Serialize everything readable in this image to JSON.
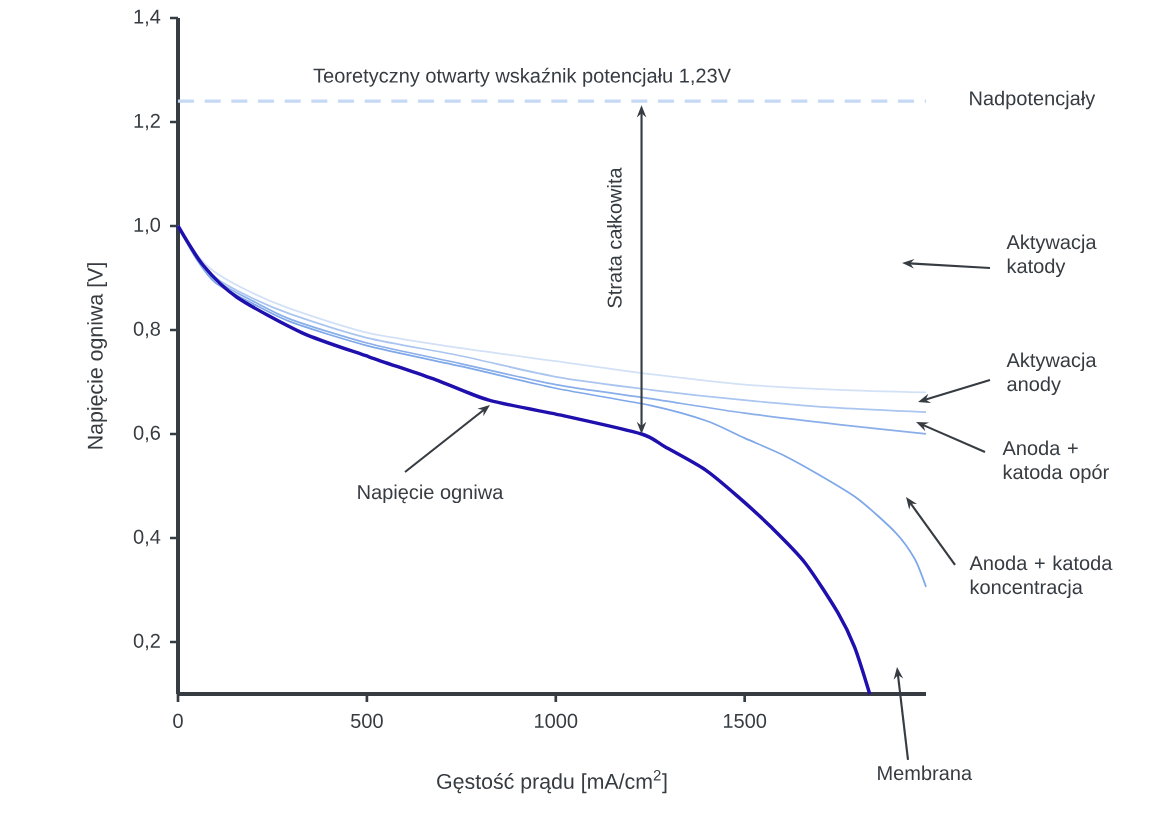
{
  "chart_data": {
    "type": "line",
    "xlabel": "Gęstość prądu [mA/cm$^{2}$]",
    "ylabel": "Napięcie ogniwa [V]",
    "xlim": [
      0,
      1980
    ],
    "ylim": [
      0.1,
      1.4
    ],
    "xticks": [
      0,
      500,
      1000,
      1500
    ],
    "yticks": [
      {
        "value": 0.2,
        "label": "0,2"
      },
      {
        "value": 0.4,
        "label": "0,4"
      },
      {
        "value": 0.6,
        "label": "0,6"
      },
      {
        "value": 0.8,
        "label": "0,8"
      },
      {
        "value": 1.0,
        "label": "1,0"
      },
      {
        "value": 1.2,
        "label": "1,2"
      },
      {
        "value": 1.4,
        "label": "1,4"
      }
    ],
    "grid": false,
    "marker": "none",
    "line_style": "solid",
    "series": [
      {
        "color": "#d3e1f7",
        "x": [
          0,
          50,
          100,
          200,
          300,
          500,
          750,
          1000,
          1250,
          1500,
          1750,
          1980
        ],
        "values": [
          1.0,
          0.945,
          0.91,
          0.87,
          0.84,
          0.795,
          0.765,
          0.74,
          0.715,
          0.695,
          0.685,
          0.68
        ]
      },
      {
        "color": "#aac5f0",
        "x": [
          0,
          50,
          100,
          200,
          300,
          500,
          750,
          1000,
          1250,
          1500,
          1750,
          1980
        ],
        "values": [
          1.0,
          0.94,
          0.9,
          0.86,
          0.83,
          0.785,
          0.75,
          0.71,
          0.685,
          0.665,
          0.65,
          0.642
        ]
      },
      {
        "color": "#8aaee9",
        "x": [
          0,
          50,
          100,
          200,
          300,
          500,
          750,
          1000,
          1250,
          1500,
          1750,
          1980
        ],
        "values": [
          1.0,
          0.937,
          0.895,
          0.855,
          0.82,
          0.775,
          0.735,
          0.695,
          0.668,
          0.64,
          0.618,
          0.6
        ]
      },
      {
        "color": "#7ea8ea",
        "x": [
          0,
          50,
          100,
          200,
          300,
          500,
          750,
          1000,
          1250,
          1400,
          1500,
          1600,
          1700,
          1800,
          1900,
          1950,
          1980
        ],
        "values": [
          1.0,
          0.935,
          0.89,
          0.85,
          0.815,
          0.77,
          0.73,
          0.688,
          0.655,
          0.625,
          0.592,
          0.56,
          0.52,
          0.475,
          0.41,
          0.36,
          0.306
        ]
      },
      {
        "color": "#1f10ae",
        "x": [
          0,
          66,
          156,
          330,
          507,
          683,
          823,
          1034,
          1227,
          1290,
          1396,
          1483,
          1570,
          1660,
          1747,
          1791,
          1831
        ],
        "values": [
          1.0,
          0.925,
          0.863,
          0.794,
          0.748,
          0.704,
          0.665,
          0.633,
          0.6,
          0.575,
          0.531,
          0.479,
          0.421,
          0.352,
          0.256,
          0.19,
          0.1
        ]
      }
    ],
    "ref_lines": [
      {
        "axis": "y",
        "value": 1.24,
        "label": "Teoretyczny otwarty wskaźnik potencjału 1,23V",
        "color": "#c5d9f5",
        "line_style": "dashed"
      }
    ],
    "annotations": [
      "Nadpotencjały",
      "Strata całkowita",
      "Aktywacja katody",
      "Aktywacja anody",
      "Anoda + katoda opór",
      "Anoda + katoda koncentracja",
      "Membrana",
      "Napięcie ogniwa"
    ]
  }
}
